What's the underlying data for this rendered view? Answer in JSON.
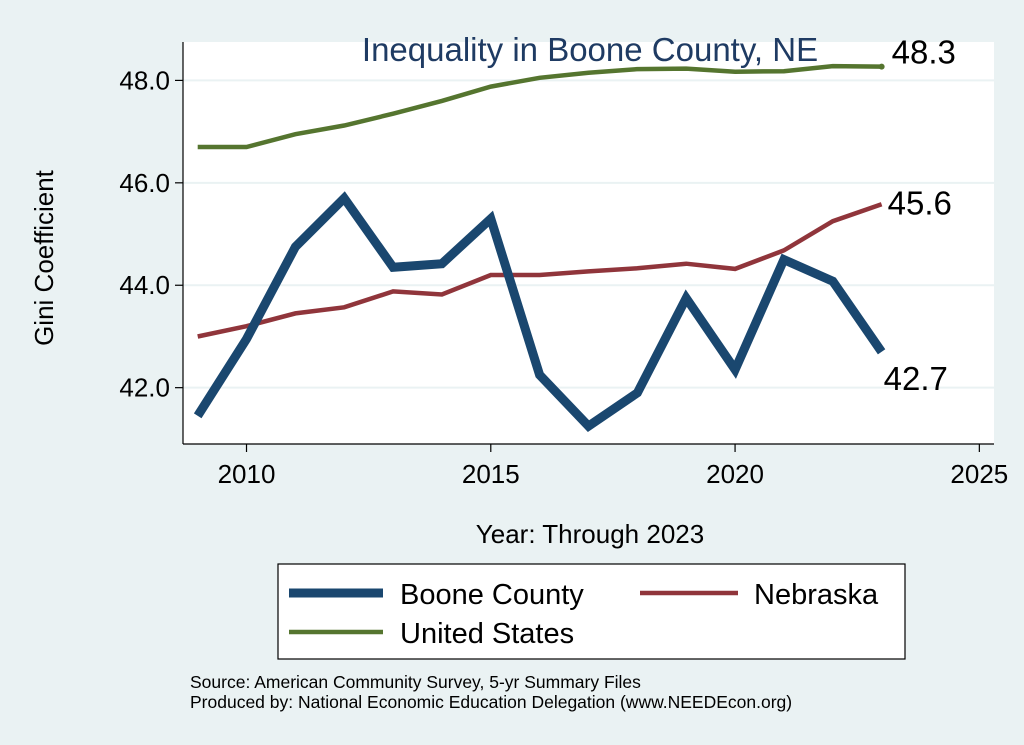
{
  "chart_data": {
    "type": "line",
    "title": "Inequality in Boone County, NE",
    "xlabel": "Year: Through 2023",
    "ylabel": "Gini Coefficient",
    "xlim": [
      2008.7,
      2025.3
    ],
    "ylim": [
      40.9,
      48.75
    ],
    "xticks": [
      2010,
      2015,
      2020,
      2025
    ],
    "yticks": [
      42.0,
      44.0,
      46.0,
      48.0
    ],
    "ytick_labels": [
      "42.0",
      "44.0",
      "46.0",
      "48.0"
    ],
    "grid": true,
    "legend_position": "bottom",
    "series": [
      {
        "name": "Boone County",
        "color": "#1a476f",
        "x": [
          2009,
          2010,
          2011,
          2012,
          2013,
          2014,
          2015,
          2016,
          2017,
          2018,
          2019,
          2020,
          2021,
          2022,
          2023
        ],
        "values": [
          41.45,
          42.95,
          44.75,
          45.7,
          44.35,
          44.42,
          45.3,
          42.25,
          41.25,
          41.9,
          43.75,
          42.35,
          44.5,
          44.08,
          42.7
        ],
        "end_label": "42.7"
      },
      {
        "name": "Nebraska",
        "color": "#90353b",
        "x": [
          2009,
          2010,
          2011,
          2012,
          2013,
          2014,
          2015,
          2016,
          2017,
          2018,
          2019,
          2020,
          2021,
          2022,
          2023
        ],
        "values": [
          43.0,
          43.2,
          43.45,
          43.57,
          43.88,
          43.82,
          44.2,
          44.2,
          44.27,
          44.33,
          44.42,
          44.32,
          44.68,
          45.25,
          45.58
        ],
        "end_label": "45.6"
      },
      {
        "name": "United States",
        "color": "#55752f",
        "x": [
          2009,
          2010,
          2011,
          2012,
          2013,
          2014,
          2015,
          2016,
          2017,
          2018,
          2019,
          2020,
          2021,
          2022,
          2023
        ],
        "values": [
          46.7,
          46.7,
          46.95,
          47.12,
          47.35,
          47.6,
          47.88,
          48.05,
          48.15,
          48.22,
          48.23,
          48.17,
          48.18,
          48.28,
          48.27
        ],
        "end_label": "48.3"
      }
    ]
  },
  "source": {
    "line1": "Source: American Community Survey, 5-yr Summary Files",
    "line2": "Produced by: National Economic Education Delegation (www.NEEDEcon.org)"
  }
}
